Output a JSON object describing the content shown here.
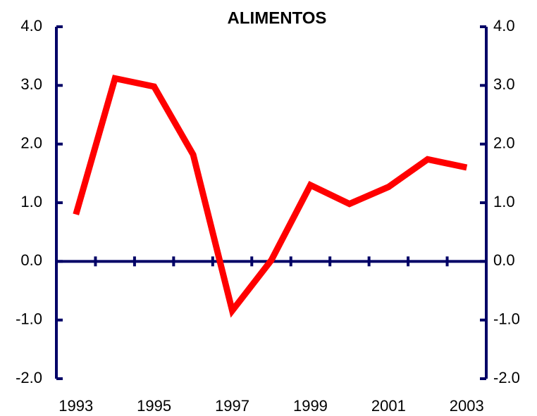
{
  "chart_data": {
    "type": "line",
    "title": "ALIMENTOS",
    "x": [
      1993,
      1994,
      1995,
      1996,
      1997,
      1998,
      1999,
      2000,
      2001,
      2002,
      2003
    ],
    "series": [
      {
        "name": "ALIMENTOS",
        "color": "#ff0000",
        "values": [
          0.8,
          3.12,
          2.98,
          1.82,
          -0.84,
          0.02,
          1.3,
          0.98,
          1.27,
          1.74,
          1.6
        ]
      }
    ],
    "xlim": [
      1992.5,
      2003.5
    ],
    "xticks": [
      1993,
      1995,
      1997,
      1999,
      2001,
      2003
    ],
    "ylim": [
      -2,
      4
    ],
    "yticks": [
      {
        "value": -2,
        "label": "-2.0"
      },
      {
        "value": -1,
        "label": "-1.0"
      },
      {
        "value": 0,
        "label": "0.0"
      },
      {
        "value": 1,
        "label": "1.0"
      },
      {
        "value": 2,
        "label": "2.0"
      },
      {
        "value": 3,
        "label": "3.0"
      },
      {
        "value": 4,
        "label": "4.0"
      }
    ],
    "y2lim": [
      -2,
      4
    ],
    "y2ticks": [
      {
        "value": -2,
        "label": "-2.0"
      },
      {
        "value": -1,
        "label": "-1.0"
      },
      {
        "value": 0,
        "label": "0.0"
      },
      {
        "value": 1,
        "label": "1.0"
      },
      {
        "value": 2,
        "label": "2.0"
      },
      {
        "value": 3,
        "label": "3.0"
      },
      {
        "value": 4,
        "label": "4.0"
      }
    ],
    "axis_color": "#000066"
  }
}
